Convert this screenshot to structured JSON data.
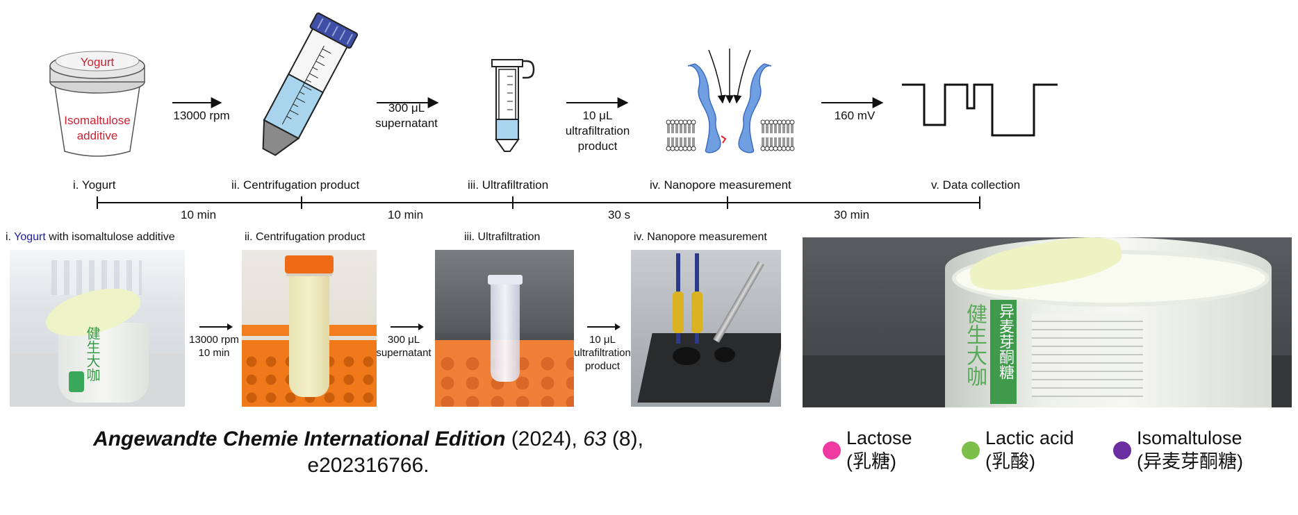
{
  "workflow": {
    "yogurt_cup": {
      "lid_text": "Yogurt",
      "body_line1": "Isomaltulose",
      "body_line2": "additive"
    },
    "arrows": [
      {
        "lines": [
          "13000 rpm"
        ]
      },
      {
        "lines": [
          "300 μL",
          "supernatant"
        ]
      },
      {
        "lines": [
          "10 μL",
          "ultrafiltration",
          "product"
        ]
      },
      {
        "lines": [
          "160 mV"
        ]
      }
    ],
    "steps": [
      "i. Yogurt",
      "ii. Centrifugation product",
      "iii. Ultrafiltration",
      "iv. Nanopore measurement",
      "v. Data collection"
    ],
    "durations": [
      "10 min",
      "10 min",
      "30 s",
      "30 min"
    ],
    "colors": {
      "cup_text": "#cc2233",
      "tube_liquid": "#a9d4ee",
      "pore": "#6f9fe0",
      "membrane": "#333333"
    }
  },
  "photos": {
    "p1_label_prefix": "i.",
    "p1_label_highlight": "Yogurt",
    "p1_label_rest": "with isomaltulose additive",
    "p2_label": "ii. Centrifugation product",
    "p3_label": "iii. Ultrafiltration",
    "p4_label": "iv. Nanopore measurement",
    "arrow1": [
      "13000 rpm",
      "10 min"
    ],
    "arrow2": [
      "300 μL",
      "supernatant"
    ],
    "arrow3": [
      "10 μL",
      "ultrafiltration",
      "product"
    ],
    "cup_brand": "健生大咖",
    "side_text": "异麦芽酮糖",
    "highlight_color": "#1a1aa8"
  },
  "citation": {
    "journal": "Angewandte Chemie International Edition",
    "year": "(2024),",
    "volume": "63",
    "issue": "(8),",
    "article": "e202316766."
  },
  "legend": [
    {
      "name": "Lactose",
      "cn": "(乳糖)",
      "color": "#ee3aa0"
    },
    {
      "name": "Lactic acid",
      "cn": "(乳酸)",
      "color": "#7cbf4a"
    },
    {
      "name": "Isomaltulose",
      "cn": "(异麦芽酮糖)",
      "color": "#6a2ea0"
    }
  ]
}
